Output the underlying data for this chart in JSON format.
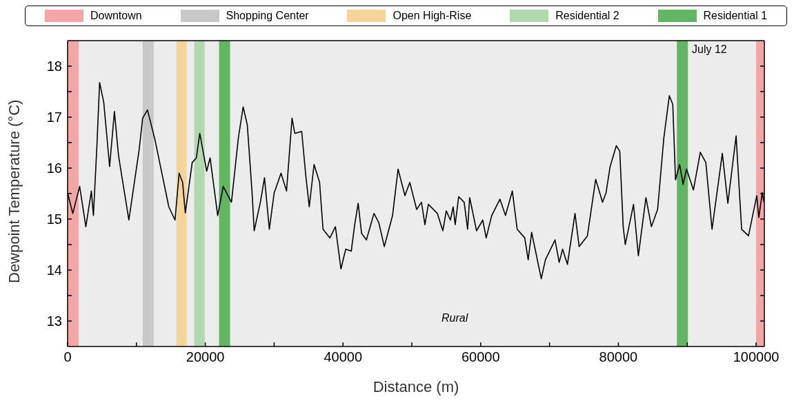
{
  "chart_data": {
    "type": "line",
    "xlabel": "Distance (m)",
    "ylabel": "Dewpoint Temperature (°C)",
    "annotations": [
      "July 12",
      "Rural"
    ],
    "xlim": [
      0,
      101200
    ],
    "ylim": [
      12.5,
      18.5
    ],
    "xticks": [
      0,
      {
        "value": 10000,
        "label": null
      },
      20000,
      {
        "value": 30000,
        "label": null
      },
      40000,
      {
        "value": 50000,
        "label": null
      },
      60000,
      {
        "value": 70000,
        "label": null
      },
      80000,
      {
        "value": 90000,
        "label": null
      },
      100000
    ],
    "yticks": [
      13,
      {
        "value": 13.5,
        "label": null
      },
      14,
      {
        "value": 14.5,
        "label": null
      },
      15,
      {
        "value": 15.5,
        "label": null
      },
      16,
      {
        "value": 16.5,
        "label": null
      },
      17,
      {
        "value": 17.5,
        "label": null
      },
      18
    ],
    "legend": "top",
    "marker": "none",
    "line_style": "solid",
    "bands": [
      {
        "axis": "x",
        "from": 0,
        "to": 1600,
        "label": "Downtown",
        "color": "#f4a6a6"
      },
      {
        "axis": "x",
        "from": 10900,
        "to": 12500,
        "label": "Shopping Center",
        "color": "#c8c8c8"
      },
      {
        "axis": "x",
        "from": 15800,
        "to": 17300,
        "label": "Open High-Rise",
        "color": "#f5d49a"
      },
      {
        "axis": "x",
        "from": 18400,
        "to": 19900,
        "label": "Residential 2",
        "color": "#b1d8ae"
      },
      {
        "axis": "x",
        "from": 22000,
        "to": 23600,
        "label": "Residential 1",
        "color": "#62b562"
      },
      {
        "axis": "x",
        "from": 88500,
        "to": 90100,
        "color": "#62b562"
      },
      {
        "axis": "x",
        "from": 100000,
        "to": 101200,
        "color": "#f4a6a6"
      }
    ],
    "series": [
      {
        "color": "#000000",
        "x": [
          0,
          750,
          1750,
          2650,
          3450,
          3750,
          4250,
          4650,
          5250,
          6100,
          6800,
          7400,
          8900,
          10400,
          10900,
          11600,
          12700,
          14700,
          15600,
          16200,
          16700,
          17100,
          18100,
          18700,
          19200,
          20200,
          20700,
          21800,
          22600,
          23800,
          24800,
          25500,
          26100,
          26800,
          27100,
          28000,
          28600,
          29300,
          30000,
          31000,
          31800,
          32600,
          33000,
          34000,
          34600,
          35100,
          35800,
          36600,
          37100,
          38100,
          38900,
          39700,
          40400,
          41200,
          41700,
          42200,
          42700,
          43400,
          44500,
          45200,
          46000,
          47200,
          48000,
          49000,
          49700,
          50700,
          51400,
          51900,
          52400,
          53700,
          54500,
          55000,
          55600,
          56000,
          56300,
          56800,
          57600,
          58100,
          58400,
          59400,
          60300,
          60800,
          61600,
          62800,
          63600,
          64600,
          65300,
          66400,
          66900,
          67400,
          68800,
          69400,
          70800,
          71400,
          71900,
          72600,
          73700,
          74300,
          75500,
          76700,
          77700,
          78200,
          78800,
          79700,
          80200,
          80700,
          81000,
          82200,
          82900,
          84000,
          84800,
          85700,
          86600,
          87400,
          87900,
          88300,
          88900,
          89400,
          89900,
          90900,
          91900,
          92700,
          93600,
          95100,
          95900,
          97100,
          97900,
          98900,
          100100,
          100400,
          100900,
          101150
        ],
        "values": [
          15.51,
          15.11,
          15.64,
          14.85,
          15.55,
          15.07,
          16.42,
          17.68,
          17.29,
          16.03,
          17.11,
          16.24,
          14.98,
          16.37,
          16.98,
          17.14,
          16.55,
          15.24,
          14.98,
          15.9,
          15.72,
          15.12,
          16.11,
          16.2,
          16.68,
          15.94,
          16.2,
          15.07,
          15.64,
          15.33,
          16.59,
          17.2,
          16.85,
          15.51,
          14.77,
          15.33,
          15.81,
          14.8,
          15.51,
          15.9,
          15.55,
          16.98,
          16.68,
          16.72,
          15.85,
          15.24,
          16.07,
          15.72,
          14.8,
          14.63,
          14.85,
          14.02,
          14.41,
          14.37,
          14.89,
          15.31,
          14.72,
          14.59,
          15.11,
          14.93,
          14.46,
          15.07,
          15.98,
          15.46,
          15.72,
          15.19,
          15.33,
          14.89,
          15.29,
          15.11,
          14.77,
          15.16,
          14.98,
          15.24,
          14.89,
          15.44,
          15.33,
          14.8,
          15.42,
          14.77,
          14.98,
          14.63,
          15.07,
          15.39,
          15.07,
          15.55,
          14.8,
          14.63,
          14.2,
          14.74,
          13.83,
          14.2,
          14.59,
          14.15,
          14.41,
          14.11,
          15.11,
          14.46,
          14.67,
          15.78,
          15.33,
          15.51,
          16.03,
          16.44,
          16.33,
          14.85,
          14.5,
          15.29,
          14.28,
          15.42,
          14.85,
          15.19,
          16.59,
          17.42,
          17.25,
          15.77,
          16.07,
          15.68,
          15.98,
          15.57,
          16.31,
          16.11,
          14.8,
          16.29,
          15.31,
          16.63,
          14.8,
          14.67,
          15.46,
          15.03,
          15.52,
          15.33
        ]
      }
    ]
  }
}
